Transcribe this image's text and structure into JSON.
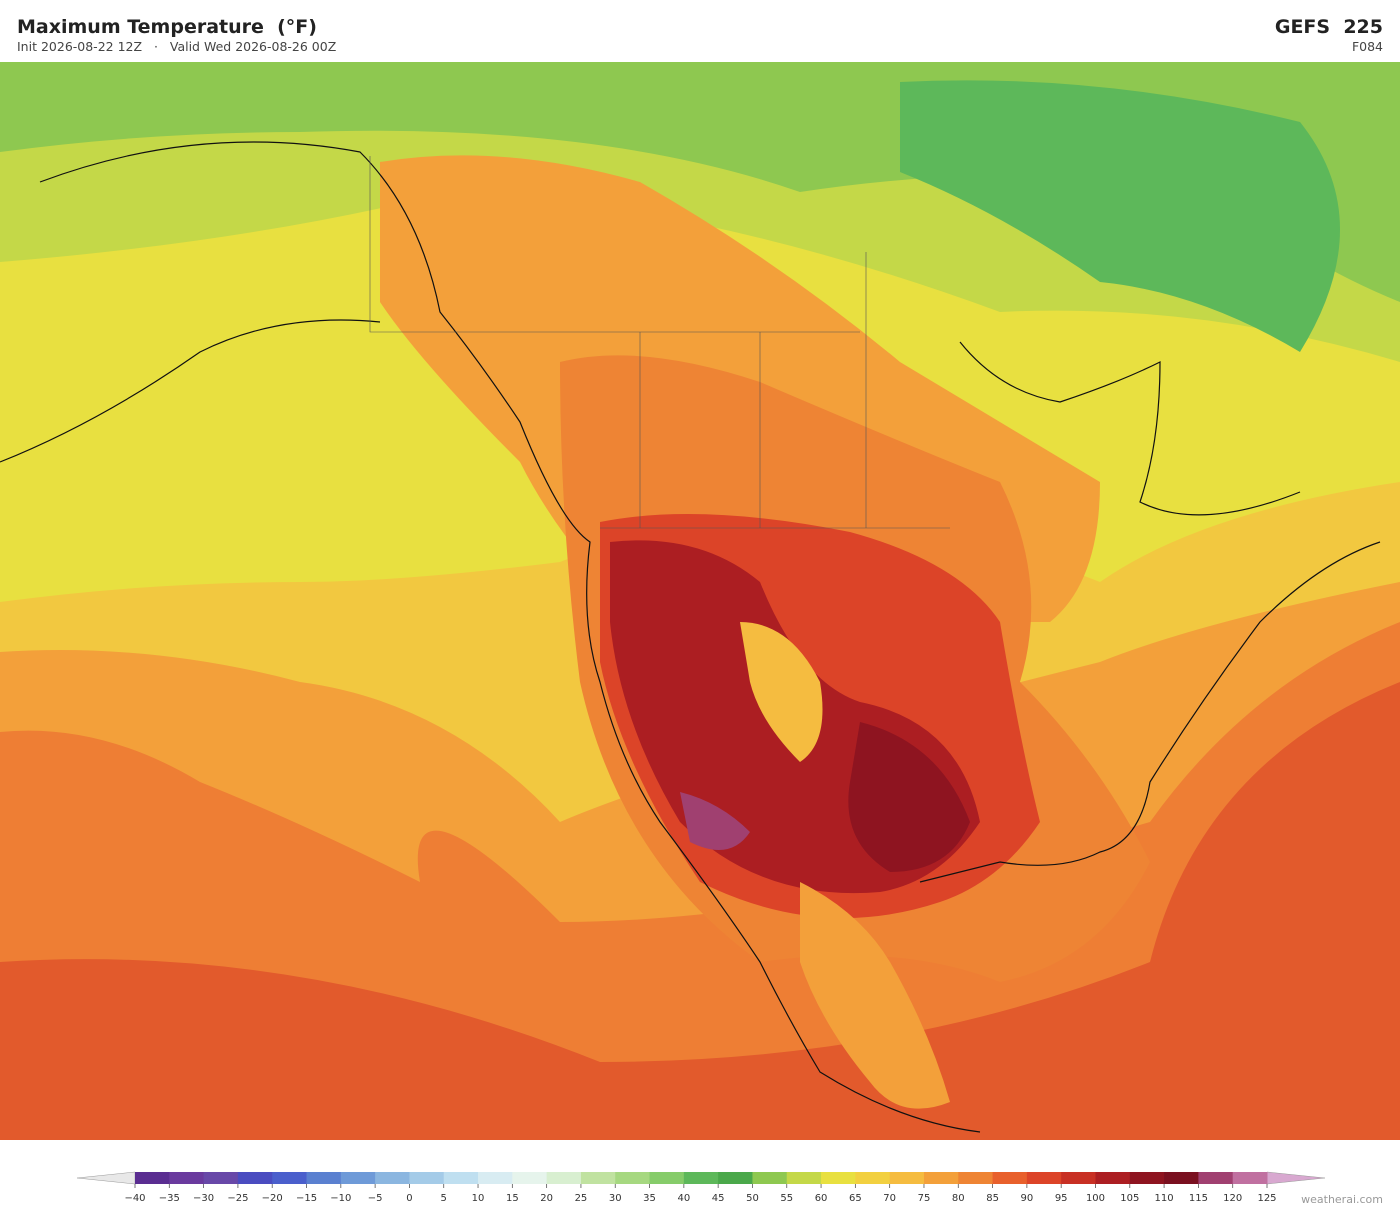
{
  "header": {
    "title": "Maximum Temperature  (°F)",
    "init": "Init 2026-08-22 12Z",
    "valid": "Valid Wed 2026-08-26 00Z",
    "model": "GEFS  225",
    "forecast_hour": "F084"
  },
  "colorbar": {
    "ticks": [
      {
        "value": -40,
        "label": "−40"
      },
      {
        "value": -35,
        "label": "−35"
      },
      {
        "value": -30,
        "label": "−30"
      },
      {
        "value": -25,
        "label": "−25"
      },
      {
        "value": -20,
        "label": "−20"
      },
      {
        "value": -15,
        "label": "−15"
      },
      {
        "value": -10,
        "label": "−10"
      },
      {
        "value": -5,
        "label": "−5"
      },
      0,
      5,
      10,
      15,
      20,
      25,
      30,
      35,
      40,
      45,
      50,
      55,
      60,
      65,
      70,
      75,
      80,
      85,
      90,
      95,
      100,
      105,
      110,
      115,
      120,
      125
    ],
    "colors": [
      "#5a2d91",
      "#6a3a9e",
      "#6848a8",
      "#4a4cc0",
      "#4a5fcc",
      "#5a80d0",
      "#6e9ad8",
      "#8bb6e0",
      "#a4cbe8",
      "#bfdff0",
      "#d8ecf2",
      "#e6f4ec",
      "#d8efd0",
      "#c0e2a0",
      "#a6d880",
      "#86cc6a",
      "#5db85a",
      "#4aa84a",
      "#8ec850",
      "#c4d848",
      "#e8e040",
      "#f2d040",
      "#f5bc40",
      "#f3a03a",
      "#ee8434",
      "#e8602c",
      "#dc4428",
      "#c83024",
      "#ac1e22",
      "#8e1420",
      "#7a1020",
      "#a04070",
      "#c070a0"
    ]
  },
  "footer": {
    "credit": "weatherai.com"
  }
}
